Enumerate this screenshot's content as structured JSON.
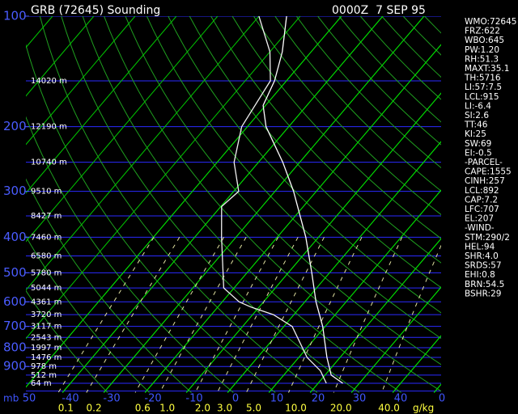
{
  "header": {
    "title": "GRB (72645) Sounding",
    "time": "0000Z  7 SEP 95"
  },
  "pressure_unit": "mb",
  "pressure_ticks": [
    100,
    200,
    300,
    400,
    500,
    600,
    700,
    800,
    900
  ],
  "height_labels": [
    "14020 m",
    "12190 m",
    "10740 m",
    "9510 m",
    "8427 m",
    "7460 m",
    "6580 m",
    "5780 m",
    "5044 m",
    "4361 m",
    "3720 m",
    "3117 m",
    "2543 m",
    "1997 m",
    "1476 m",
    "978 m",
    "512 m",
    "64 m"
  ],
  "temperature_ticks": [
    {
      "value": -50,
      "label": "50"
    },
    -40,
    -30,
    -20,
    -10,
    0,
    10,
    20,
    30,
    40,
    {
      "value": 50,
      "label": "0"
    }
  ],
  "mixing_ratio_unit": "g/kg",
  "mixing_ratio_ticks": [
    0.1,
    0.2,
    0.6,
    {
      "value": 1,
      "label": "1.0"
    },
    {
      "value": 2,
      "label": "2.0"
    },
    {
      "value": 3,
      "label": "3.0"
    },
    {
      "value": 5,
      "label": "5.0"
    },
    {
      "value": 10,
      "label": "10.0"
    },
    {
      "value": 20,
      "label": "20.0"
    },
    {
      "value": 40,
      "label": "40.0"
    }
  ],
  "temperature_profile": {
    "pressure": [
      1000,
      950,
      850,
      700,
      600,
      500,
      400,
      300,
      250,
      200,
      175,
      150,
      125,
      100
    ],
    "temperature": [
      26,
      21.5,
      16.8,
      9.4,
      2.7,
      -4.3,
      -13.1,
      -25.5,
      -34.1,
      -45.5,
      -50.6,
      -52.9,
      -57,
      -63.3
    ]
  },
  "dewpoint_profile": {
    "pressure": [
      1000,
      925,
      850,
      700,
      650,
      620,
      600,
      550,
      400,
      330,
      300,
      250,
      200,
      150,
      125,
      100
    ],
    "dewpoint": [
      22,
      18,
      12,
      2,
      -5,
      -12,
      -15.9,
      -22.5,
      -33.5,
      -39.8,
      -38.8,
      -45.9,
      -51.4,
      -53.9,
      -60,
      -70
    ]
  },
  "indices": [
    "WMO:72645",
    "FRZ:622",
    "WBO:645",
    "PW:1.20",
    "RH:51.3",
    "MAXT:35.1",
    "TH:5716",
    "LI:57:7.5",
    "LCL:915",
    "LI:-6.4",
    "SI:2.6",
    "TT:46",
    "KI:25",
    "SW:69",
    "EI:-0.5",
    "-PARCEL-",
    "CAPE:1555",
    "CINH:257",
    "LCL:892",
    "CAP:7.2",
    "LFC:707",
    "EL:207",
    "-WIND-",
    "STM:290/2",
    "HEL:94",
    "SHR:4.0",
    "SRDS:57",
    "EHI:0.8",
    "BRN:54.5",
    "BSHR:29"
  ]
}
